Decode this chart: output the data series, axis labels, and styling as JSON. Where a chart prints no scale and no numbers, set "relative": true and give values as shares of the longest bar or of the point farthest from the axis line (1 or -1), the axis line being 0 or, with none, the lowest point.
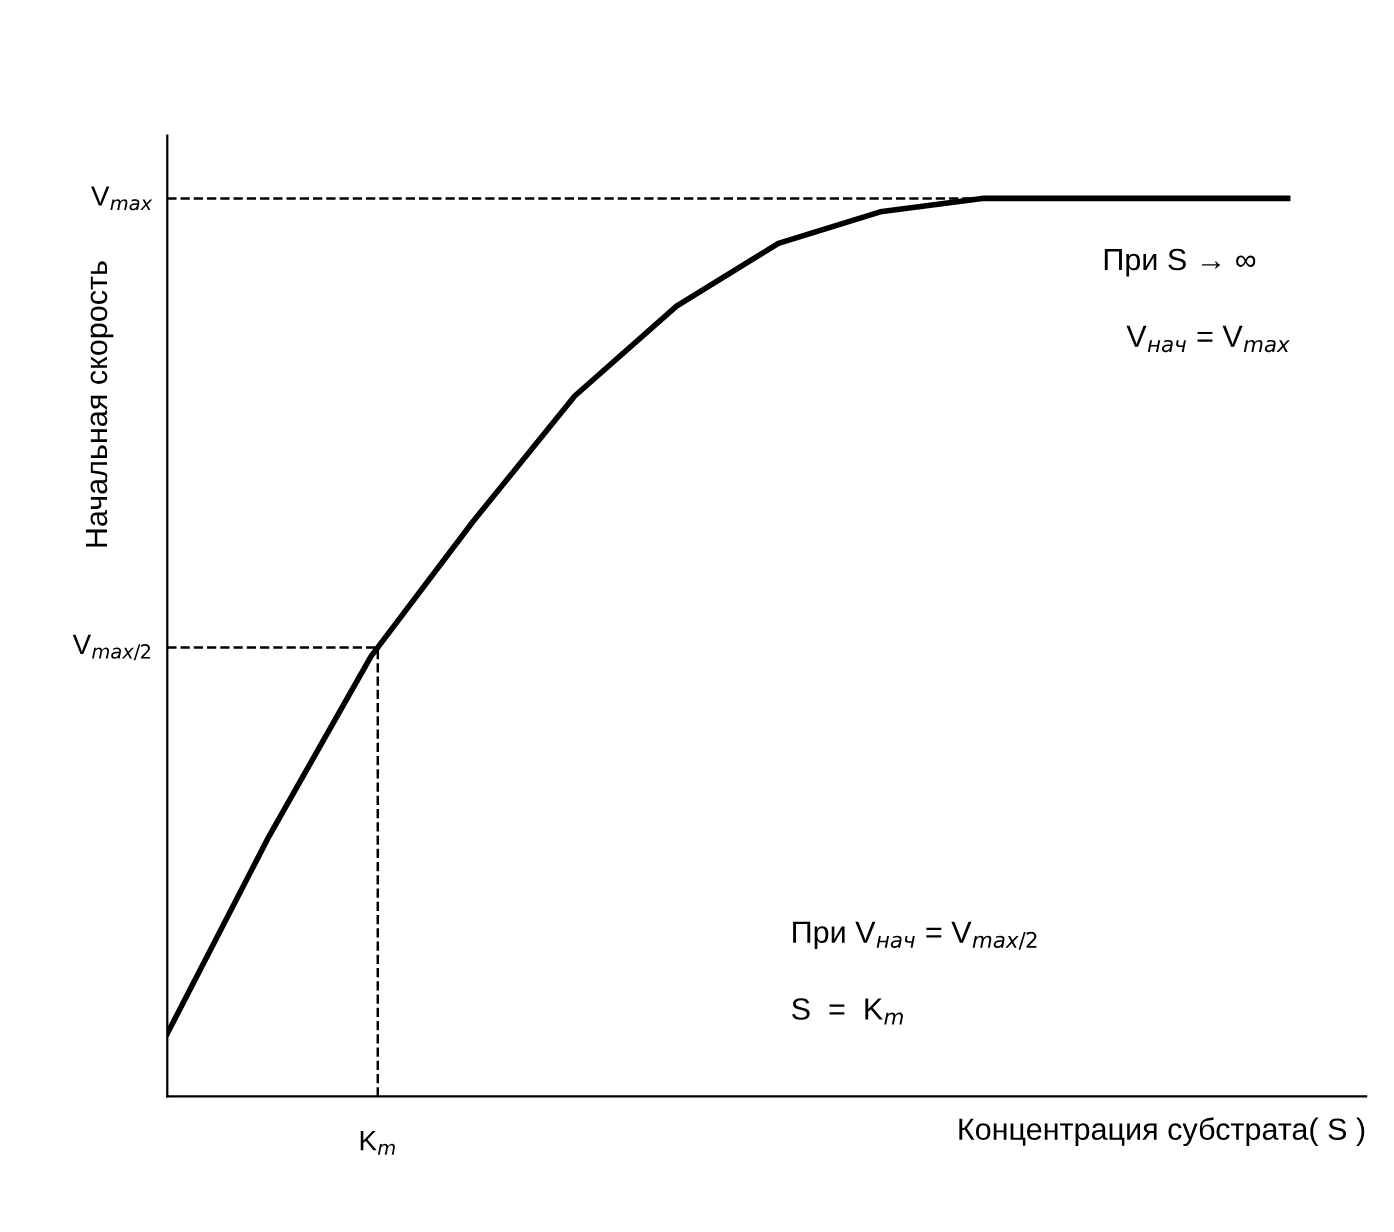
{
  "chart_data": {
    "type": "line",
    "relative": true,
    "xlabel": "Концентрация субстрата( S )",
    "ylabel": "Начальная скорость",
    "categories": [
      null,
      null,
      null,
      null,
      null,
      null,
      null,
      null,
      null,
      null,
      null,
      null
    ],
    "series": [
      {
        "color": "#000000",
        "values": [
          0.07,
          0.29,
          0.49,
          0.64,
          0.78,
          0.88,
          0.95,
          0.985,
          1.0,
          1.0,
          1.0,
          1.0
        ]
      }
    ],
    "ref_lines": [
      {
        "axis": "y",
        "value": 1.0,
        "label": "V$_{max}$",
        "line_style": "dashed"
      },
      {
        "axis": "y",
        "value": 0.5,
        "label": "V$_{max/2}$",
        "line_style": "dashed"
      }
    ],
    "annotations": [
      "K$_{m}$",
      "При S → ∞",
      "V$_{нач}$ = V$_{max}$",
      "При V$_{нач}$ = V$_{max/2}$",
      "S  =  K$_{m}$"
    ],
    "grid": false,
    "legend": false,
    "marker": "none",
    "line_style": "solid"
  }
}
